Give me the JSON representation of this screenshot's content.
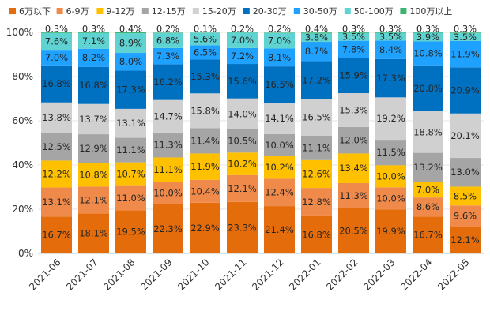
{
  "chart_data": {
    "type": "stacked-bar-100",
    "title": "",
    "xlabel": "",
    "ylabel": "",
    "ylim": [
      0,
      100
    ],
    "y_ticks": [
      "0%",
      "20%",
      "40%",
      "60%",
      "80%",
      "100%"
    ],
    "legend_position": "top",
    "categories": [
      "2021-06",
      "2021-07",
      "2021-08",
      "2021-09",
      "2021-10",
      "2021-11",
      "2021-12",
      "2022-01",
      "2022-02",
      "2022-03",
      "2022-04",
      "2022-05"
    ],
    "series": [
      {
        "name": "6万以下",
        "color": "#E46C0A",
        "values": [
          16.7,
          18.1,
          19.5,
          22.3,
          22.9,
          23.3,
          21.4,
          16.8,
          20.5,
          19.9,
          16.7,
          12.1
        ]
      },
      {
        "name": "6-9万",
        "color": "#F08A4B",
        "values": [
          13.1,
          12.1,
          11.0,
          10.0,
          10.4,
          12.1,
          12.4,
          12.8,
          11.3,
          10.0,
          8.6,
          9.6
        ]
      },
      {
        "name": "9-12万",
        "color": "#FFC000",
        "values": [
          12.2,
          10.8,
          10.7,
          11.1,
          11.9,
          10.2,
          10.2,
          12.6,
          13.4,
          10.0,
          7.0,
          8.5
        ]
      },
      {
        "name": "12-15万",
        "color": "#A5A5A5",
        "values": [
          12.5,
          12.9,
          11.1,
          11.3,
          11.4,
          10.5,
          10.0,
          11.1,
          12.0,
          11.5,
          13.2,
          13.0
        ]
      },
      {
        "name": "15-20万",
        "color": "#D0D0D0",
        "values": [
          13.8,
          13.7,
          13.1,
          14.7,
          15.8,
          14.0,
          14.1,
          16.5,
          15.3,
          19.2,
          18.8,
          20.1
        ]
      },
      {
        "name": "20-30万",
        "color": "#0070C0",
        "values": [
          16.8,
          16.8,
          17.3,
          16.2,
          15.3,
          15.6,
          16.5,
          17.2,
          15.9,
          17.3,
          20.8,
          20.9
        ]
      },
      {
        "name": "30-50万",
        "color": "#1FA2FF",
        "values": [
          7.0,
          8.2,
          8.0,
          7.3,
          6.5,
          7.2,
          8.1,
          8.7,
          7.8,
          8.4,
          10.8,
          11.9
        ]
      },
      {
        "name": "50-100万",
        "color": "#5FD3D1",
        "values": [
          7.6,
          7.1,
          8.9,
          6.8,
          5.6,
          7.0,
          7.0,
          3.8,
          3.5,
          3.5,
          3.9,
          3.5
        ]
      },
      {
        "name": "100万以上",
        "color": "#3CB371",
        "values": [
          0.3,
          0.3,
          0.4,
          0.2,
          0.1,
          0.2,
          0.2,
          0.4,
          0.3,
          0.3,
          0.3,
          0.3
        ]
      }
    ]
  }
}
